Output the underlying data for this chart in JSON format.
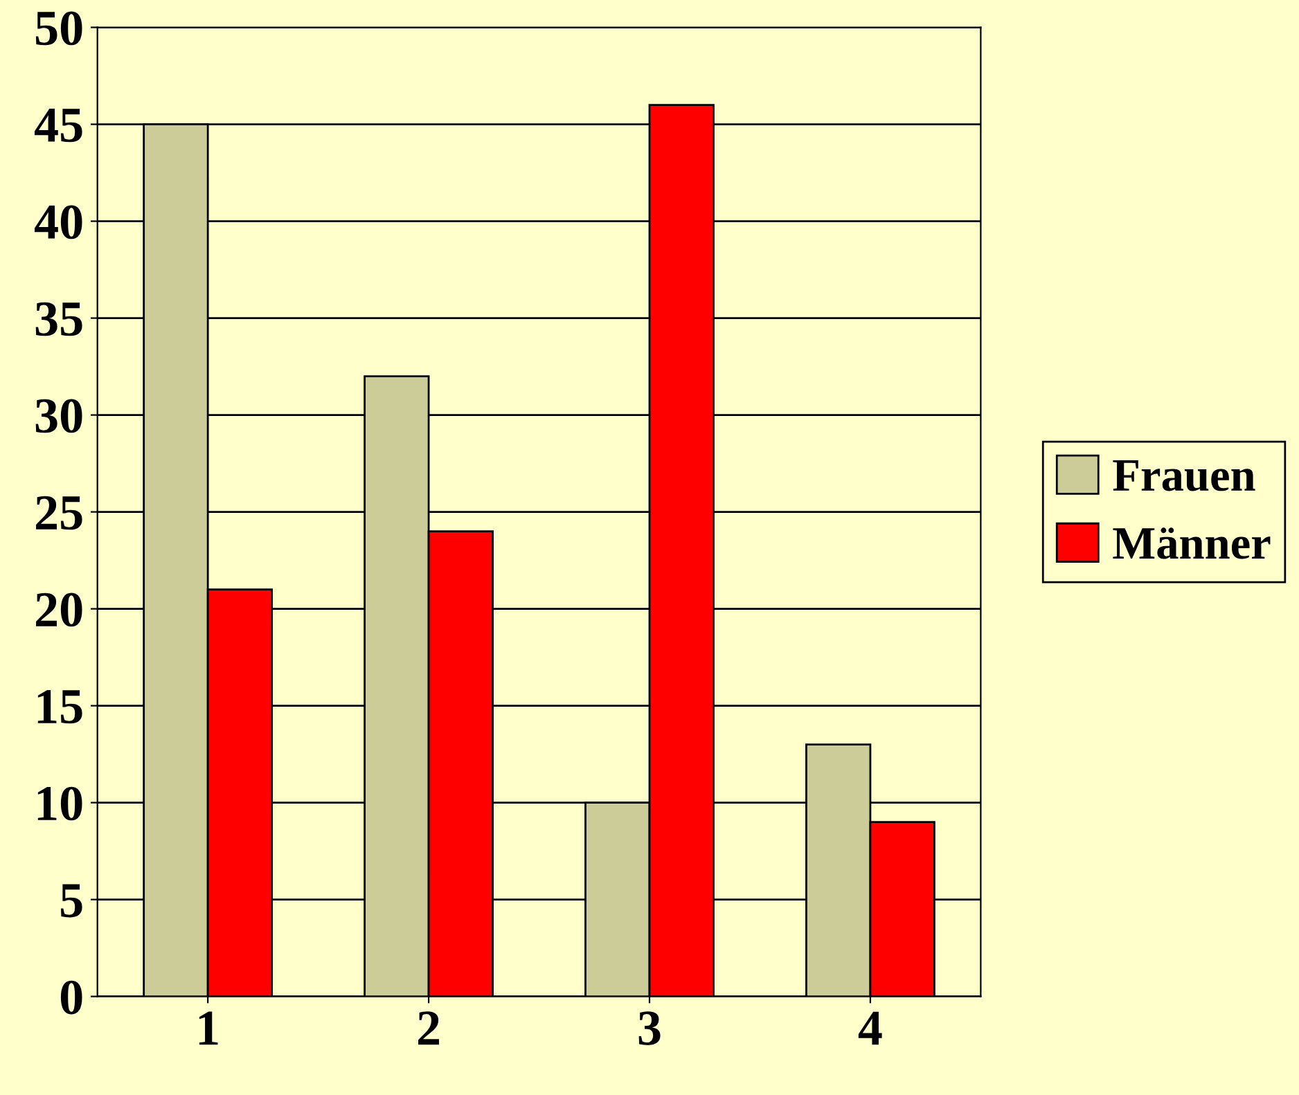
{
  "chart_data": {
    "type": "bar",
    "categories": [
      "1",
      "2",
      "3",
      "4"
    ],
    "series": [
      {
        "name": "Frauen",
        "color": "#cccc99",
        "values": [
          45,
          32,
          10,
          13
        ]
      },
      {
        "name": "Männer",
        "color": "#ff0000",
        "values": [
          21,
          24,
          46,
          9
        ]
      }
    ],
    "ylim": [
      0,
      50
    ],
    "yticks": [
      0,
      5,
      10,
      15,
      20,
      25,
      30,
      35,
      40,
      45,
      50
    ],
    "grid": "y",
    "legend": "right"
  }
}
